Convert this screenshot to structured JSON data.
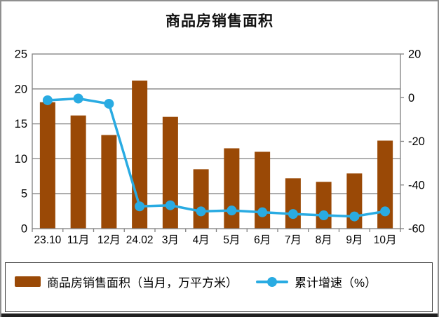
{
  "title": "商品房销售面积",
  "legend": {
    "bar_label": "商品房销售面积（当月，万平方米）",
    "line_label": "累计增速（%）"
  },
  "colors": {
    "bar": "#9A4906",
    "line": "#29ABE2",
    "grid": "#808080",
    "frame": "#808080",
    "text": "#000000",
    "legend_border": "#404040",
    "outer_border": "#8F8F8F",
    "bottom_strip": "#202020"
  },
  "chart_data": {
    "type": "bar",
    "subtype": "bar-line-combo",
    "title": "商品房销售面积",
    "categories": [
      "23.10",
      "11月",
      "12月",
      "24.02",
      "3月",
      "4月",
      "5月",
      "6月",
      "7月",
      "8月",
      "9月",
      "10月"
    ],
    "series": [
      {
        "name": "商品房销售面积（当月，万平方米）",
        "type": "bar",
        "axis": "left",
        "values": [
          18.1,
          16.2,
          13.4,
          21.2,
          16.0,
          8.5,
          11.5,
          11.0,
          7.2,
          6.7,
          7.9,
          12.6
        ]
      },
      {
        "name": "累计增速（%）",
        "type": "line",
        "axis": "right",
        "values": [
          -1.2,
          -0.4,
          -2.8,
          -49.8,
          -49.3,
          -52.1,
          -51.7,
          -52.5,
          -53.3,
          -53.9,
          -54.4,
          -52.1
        ]
      }
    ],
    "left_axis": {
      "min": 0,
      "max": 25,
      "step": 5,
      "tick_labels": [
        "25",
        "20",
        "15",
        "10",
        "5",
        "0"
      ],
      "tick_values": [
        25,
        20,
        15,
        10,
        5,
        0
      ]
    },
    "right_axis": {
      "min": -60,
      "max": 20,
      "step": 20,
      "tick_labels": [
        "20",
        "0",
        "-20",
        "-40",
        "-60"
      ],
      "tick_values": [
        20,
        0,
        -20,
        -40,
        -60
      ]
    },
    "grid": true,
    "legend_position": "bottom"
  }
}
